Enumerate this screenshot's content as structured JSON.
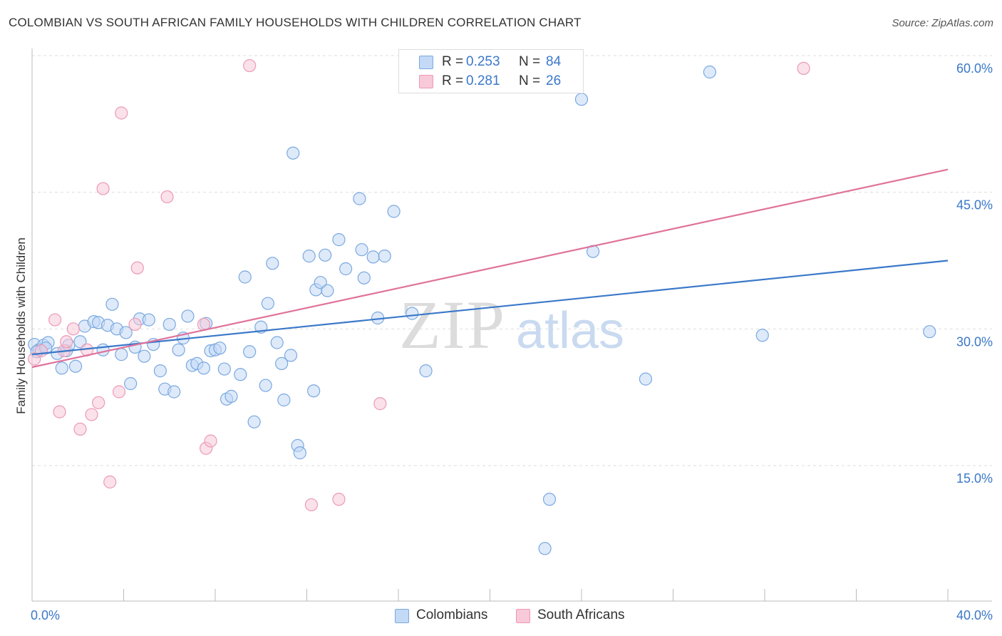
{
  "title": "COLOMBIAN VS SOUTH AFRICAN FAMILY HOUSEHOLDS WITH CHILDREN CORRELATION CHART",
  "source": "Source: ZipAtlas.com",
  "watermark": {
    "zip": "ZIP",
    "atlas": "atlas"
  },
  "colors": {
    "blue": "#3a78c9",
    "blue_fill": "#c3d9f5",
    "blue_stroke": "#7aa8e0",
    "pink": "#e0729a",
    "pink_fill": "#f8c9d8",
    "pink_stroke": "#eb9ab6",
    "grid": "#dddddd",
    "axis_text": "#3a78c9"
  },
  "legend_top": [
    {
      "r_label": "R =",
      "r_value": "0.253",
      "n_label": "N =",
      "n_value": "84"
    },
    {
      "r_label": "R =",
      "r_value": "0.281",
      "n_label": "N =",
      "n_value": "26"
    }
  ],
  "legend_bottom": [
    "Colombians",
    "South Africans"
  ],
  "chart_data": {
    "type": "scatter",
    "title": "COLOMBIAN VS SOUTH AFRICAN FAMILY HOUSEHOLDS WITH CHILDREN CORRELATION CHART",
    "xlabel": "",
    "ylabel": "Family Households with Children",
    "xlim": [
      0,
      40
    ],
    "ylim": [
      0,
      63
    ],
    "x_tick_labels": [
      "0.0%",
      "40.0%"
    ],
    "y_ticks": [
      15,
      30,
      45,
      60
    ],
    "y_tick_labels": [
      "15.0%",
      "30.0%",
      "45.0%",
      "60.0%"
    ],
    "grid": true,
    "legend_placement": "top-center",
    "series": [
      {
        "name": "Colombians",
        "color": "#3a78c9",
        "trend": {
          "x": [
            0,
            40
          ],
          "y": [
            27.2,
            37.5
          ]
        },
        "points": [
          [
            0.1,
            28.3
          ],
          [
            0.3,
            27.7
          ],
          [
            0.5,
            28.2
          ],
          [
            0.7,
            28.5
          ],
          [
            1.1,
            27.3
          ],
          [
            1.3,
            25.7
          ],
          [
            1.5,
            27.6
          ],
          [
            1.9,
            25.9
          ],
          [
            2.1,
            28.6
          ],
          [
            2.3,
            30.3
          ],
          [
            2.7,
            30.8
          ],
          [
            2.9,
            30.7
          ],
          [
            3.1,
            27.7
          ],
          [
            3.3,
            30.4
          ],
          [
            3.5,
            32.7
          ],
          [
            3.7,
            30.0
          ],
          [
            3.9,
            27.2
          ],
          [
            4.1,
            29.6
          ],
          [
            4.3,
            24.0
          ],
          [
            4.5,
            28.0
          ],
          [
            4.7,
            31.1
          ],
          [
            4.9,
            27.0
          ],
          [
            5.1,
            31.0
          ],
          [
            5.3,
            28.3
          ],
          [
            5.6,
            25.4
          ],
          [
            5.8,
            23.4
          ],
          [
            6.0,
            30.5
          ],
          [
            6.2,
            23.1
          ],
          [
            6.4,
            27.7
          ],
          [
            6.6,
            29.0
          ],
          [
            6.8,
            31.4
          ],
          [
            7.0,
            26.0
          ],
          [
            7.2,
            26.2
          ],
          [
            7.5,
            25.7
          ],
          [
            7.6,
            30.6
          ],
          [
            7.8,
            27.6
          ],
          [
            8.0,
            27.7
          ],
          [
            8.2,
            27.9
          ],
          [
            8.4,
            25.6
          ],
          [
            8.5,
            22.3
          ],
          [
            8.7,
            22.6
          ],
          [
            9.1,
            25.0
          ],
          [
            9.3,
            35.7
          ],
          [
            9.5,
            27.5
          ],
          [
            9.7,
            19.8
          ],
          [
            10.0,
            30.2
          ],
          [
            10.2,
            23.8
          ],
          [
            10.3,
            32.8
          ],
          [
            10.5,
            37.2
          ],
          [
            10.7,
            28.5
          ],
          [
            10.9,
            26.2
          ],
          [
            11.0,
            22.2
          ],
          [
            11.3,
            27.1
          ],
          [
            11.4,
            49.3
          ],
          [
            11.6,
            17.2
          ],
          [
            11.7,
            16.4
          ],
          [
            12.1,
            38.0
          ],
          [
            12.3,
            23.2
          ],
          [
            12.4,
            34.3
          ],
          [
            12.6,
            35.1
          ],
          [
            12.8,
            38.1
          ],
          [
            12.9,
            34.2
          ],
          [
            13.4,
            39.8
          ],
          [
            13.7,
            36.6
          ],
          [
            14.3,
            44.3
          ],
          [
            14.4,
            38.7
          ],
          [
            14.5,
            35.6
          ],
          [
            14.9,
            37.9
          ],
          [
            15.1,
            31.2
          ],
          [
            15.4,
            38.0
          ],
          [
            15.8,
            42.9
          ],
          [
            16.6,
            31.7
          ],
          [
            17.2,
            25.4
          ],
          [
            22.4,
            5.9
          ],
          [
            22.6,
            11.3
          ],
          [
            24.0,
            55.2
          ],
          [
            24.5,
            38.5
          ],
          [
            26.8,
            24.5
          ],
          [
            29.6,
            58.2
          ],
          [
            31.9,
            29.3
          ],
          [
            39.2,
            29.7
          ],
          [
            0.2,
            27.5
          ],
          [
            0.6,
            27.9
          ],
          [
            1.6,
            28.2
          ]
        ]
      },
      {
        "name": "South Africans",
        "color": "#e0729a",
        "trend": {
          "x": [
            0,
            40
          ],
          "y": [
            25.8,
            47.5
          ]
        },
        "points": [
          [
            0.1,
            26.7
          ],
          [
            0.4,
            27.6
          ],
          [
            1.0,
            31.0
          ],
          [
            1.2,
            20.9
          ],
          [
            1.4,
            27.6
          ],
          [
            1.5,
            28.6
          ],
          [
            1.8,
            30.0
          ],
          [
            2.1,
            19.0
          ],
          [
            2.4,
            27.7
          ],
          [
            2.6,
            20.6
          ],
          [
            2.9,
            21.9
          ],
          [
            3.1,
            45.4
          ],
          [
            3.4,
            13.2
          ],
          [
            3.8,
            23.1
          ],
          [
            3.9,
            53.7
          ],
          [
            4.5,
            30.5
          ],
          [
            4.6,
            36.7
          ],
          [
            5.9,
            44.5
          ],
          [
            7.5,
            30.5
          ],
          [
            7.6,
            16.9
          ],
          [
            7.8,
            17.7
          ],
          [
            9.5,
            58.9
          ],
          [
            12.2,
            10.7
          ],
          [
            13.4,
            11.3
          ],
          [
            15.2,
            21.8
          ],
          [
            33.7,
            58.6
          ]
        ]
      }
    ]
  }
}
